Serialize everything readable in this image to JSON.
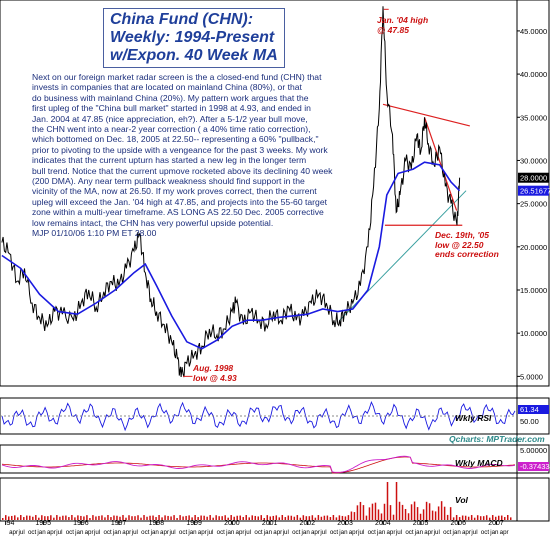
{
  "title_lines": [
    "China Fund (CHN):",
    "Weekly: 1994-Present",
    "w/Expon. 40 Week MA"
  ],
  "commentary": [
    "Next on our foreign market radar screen is the a closed-end fund (CHN) that",
    "invests in companies that are located on mainland China (80%), or that",
    "do business with mainland China (20%). My pattern work argues that the",
    "first upleg of the \"China bull market\" started in 1998 at 4.93, and ended in",
    "Jan. 2004 at 47.85 (nice appreciation, eh?). After a 5-1/2 year bull move,",
    "the CHN went into a near-2 year correction ( a 40% time ratio correction),",
    "which bottomed on Dec. 18, 2005 at 22.50-- representing a 60% \"pullback,\"",
    "prior to pivoting to the upside with a vengeance for the past 3 weeks. My work",
    "indicates that the current upturn has started a new leg in the longer term",
    "bull trend. Notice that the current upmove rocketed above its declining 40 week",
    "(200 DMA). Any near term pullback weakness should find support in the",
    "vicinity of the MA, now at 26.50. If my work proves correct, then the current",
    "upleg will exceed the Jan. '04 high at 47.85, and projects into the 55-60 target",
    "zone within a multi-year timeframe. AS LONG AS 22.50 Dec. 2005 corrective",
    "low remains intact, the CHN has very powerful upside potential.",
    "MJP  01/10/06  1:10 PM ET  28.00"
  ],
  "annotations": {
    "high": [
      "Jan. '04 high",
      "@ 47.85"
    ],
    "aug_low": [
      "Aug. 1998",
      "low @ 4.93"
    ],
    "dec_low": [
      "Dec. 19th, '05",
      "low @ 22.50",
      "ends correction"
    ]
  },
  "price_labels": {
    "last": "28.0000",
    "ma": "26.51677"
  },
  "rsi_panel": {
    "label": "Wkly RSI",
    "value": "61.34",
    "level": "50.00"
  },
  "macd_panel": {
    "label": "Wkly MACD",
    "level": "5.00000",
    "value": "-0.37433"
  },
  "vol_panel": {
    "label": "Vol"
  },
  "credit": "Qcharts: MPTrader.com",
  "colors": {
    "price": "#000000",
    "ma": "#1a1ae0",
    "trend_red": "#dd2020",
    "support": "#3aa0a0",
    "rsi": "#1a1ae0",
    "macd": "#cc20cc",
    "macd_signal": "#cc1010",
    "vol": "#cc1010",
    "last_badge": "#000000",
    "ma_badge": "#1a1ae0"
  },
  "chart_data": {
    "type": "line",
    "x": [
      "1994",
      "1995",
      "1996",
      "1997",
      "1998",
      "1999",
      "2000",
      "2001",
      "2002",
      "2003",
      "2004",
      "2005",
      "2006",
      "2007"
    ],
    "ylim": [
      4,
      48
    ],
    "yticks": [
      5,
      10,
      15,
      20,
      25,
      30,
      35,
      40,
      45
    ],
    "ytick_labels": [
      "5.0000",
      "10.0000",
      "15.0000",
      "20.0000",
      "25.0000",
      "30.0000",
      "35.0000",
      "40.0000",
      "45.0000"
    ],
    "series": [
      {
        "values": [
          [
            1993.9,
            20.5
          ],
          [
            1994.1,
            19.2
          ],
          [
            1994.3,
            16.0
          ],
          [
            1994.5,
            17.5
          ],
          [
            1994.7,
            13.5
          ],
          [
            1994.9,
            11.8
          ],
          [
            1995.1,
            10.8
          ],
          [
            1995.3,
            12.5
          ],
          [
            1995.5,
            12.2
          ],
          [
            1995.8,
            11.5
          ],
          [
            1996.0,
            13.5
          ],
          [
            1996.2,
            15.0
          ],
          [
            1996.4,
            13.0
          ],
          [
            1996.6,
            14.8
          ],
          [
            1996.8,
            16.0
          ],
          [
            1997.0,
            15.5
          ],
          [
            1997.2,
            17.5
          ],
          [
            1997.4,
            19.5
          ],
          [
            1997.55,
            21.5
          ],
          [
            1997.7,
            17.0
          ],
          [
            1997.85,
            14.0
          ],
          [
            1998.0,
            12.5
          ],
          [
            1998.2,
            11.0
          ],
          [
            1998.4,
            9.0
          ],
          [
            1998.55,
            7.0
          ],
          [
            1998.65,
            4.93
          ],
          [
            1998.8,
            6.5
          ],
          [
            1999.0,
            7.5
          ],
          [
            1999.2,
            8.5
          ],
          [
            1999.4,
            10.5
          ],
          [
            1999.6,
            9.8
          ],
          [
            1999.8,
            10.5
          ],
          [
            2000.0,
            12.5
          ],
          [
            2000.1,
            13.5
          ],
          [
            2000.3,
            11.0
          ],
          [
            2000.5,
            12.5
          ],
          [
            2000.7,
            11.5
          ],
          [
            2000.9,
            11.0
          ],
          [
            2001.1,
            12.5
          ],
          [
            2001.3,
            11.5
          ],
          [
            2001.5,
            13.0
          ],
          [
            2001.7,
            11.5
          ],
          [
            2001.9,
            12.0
          ],
          [
            2002.1,
            13.5
          ],
          [
            2002.3,
            14.5
          ],
          [
            2002.5,
            13.5
          ],
          [
            2002.7,
            11.5
          ],
          [
            2002.85,
            11.5
          ],
          [
            2003.0,
            12.5
          ],
          [
            2003.2,
            13.5
          ],
          [
            2003.4,
            15.5
          ],
          [
            2003.6,
            20.0
          ],
          [
            2003.75,
            27.0
          ],
          [
            2003.9,
            36.0
          ],
          [
            2004.0,
            47.85
          ],
          [
            2004.1,
            38.0
          ],
          [
            2004.25,
            33.0
          ],
          [
            2004.35,
            24.0
          ],
          [
            2004.45,
            26.0
          ],
          [
            2004.6,
            30.0
          ],
          [
            2004.75,
            29.0
          ],
          [
            2004.9,
            33.0
          ],
          [
            2005.0,
            31.0
          ],
          [
            2005.1,
            35.0
          ],
          [
            2005.2,
            32.0
          ],
          [
            2005.35,
            29.5
          ],
          [
            2005.5,
            31.5
          ],
          [
            2005.65,
            27.0
          ],
          [
            2005.8,
            25.0
          ],
          [
            2005.96,
            22.5
          ],
          [
            2006.03,
            28.0
          ]
        ]
      },
      {
        "values": [
          [
            1993.9,
            19.0
          ],
          [
            1994.4,
            17.5
          ],
          [
            1994.9,
            14.5
          ],
          [
            1995.4,
            12.5
          ],
          [
            1995.9,
            12.2
          ],
          [
            1996.4,
            13.5
          ],
          [
            1996.9,
            15.0
          ],
          [
            1997.4,
            17.0
          ],
          [
            1997.7,
            18.0
          ],
          [
            1998.0,
            15.5
          ],
          [
            1998.4,
            12.0
          ],
          [
            1998.8,
            9.0
          ],
          [
            1999.2,
            8.2
          ],
          [
            1999.6,
            9.2
          ],
          [
            2000.0,
            10.8
          ],
          [
            2000.4,
            11.5
          ],
          [
            2000.8,
            11.5
          ],
          [
            2001.2,
            11.8
          ],
          [
            2001.6,
            12.0
          ],
          [
            2002.0,
            12.2
          ],
          [
            2002.4,
            12.8
          ],
          [
            2002.8,
            12.5
          ],
          [
            2003.2,
            12.8
          ],
          [
            2003.6,
            15.0
          ],
          [
            2003.9,
            20.0
          ],
          [
            2004.1,
            26.0
          ],
          [
            2004.4,
            28.5
          ],
          [
            2004.8,
            29.0
          ],
          [
            2005.1,
            29.8
          ],
          [
            2005.5,
            29.5
          ],
          [
            2005.8,
            27.5
          ],
          [
            2006.03,
            26.5
          ]
        ]
      }
    ]
  }
}
